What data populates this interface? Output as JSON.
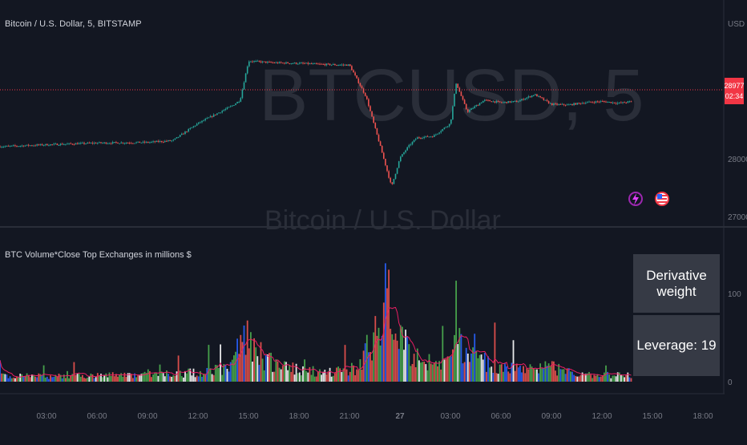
{
  "header": {
    "symbol_title": "Bitcoin / U.S. Dollar, 5, BITSTAMP",
    "watermark_main": "BTCUSD, 5",
    "watermark_sub": "Bitcoin / U.S. Dollar"
  },
  "price_pane": {
    "currency": "USD",
    "y_ticks": [
      "28000",
      "27000"
    ],
    "current_price": "28977",
    "countdown": "02:34",
    "colors": {
      "up": "#26a69a",
      "down": "#ef5350",
      "price_line": "#f23645"
    }
  },
  "indicator_pane": {
    "title": "BTC Volume*Close Top Exchanges in millions $",
    "y_ticks": [
      "100",
      "0"
    ],
    "info_box": {
      "weight_label": "Derivative weight",
      "leverage_label": "Leverage: 19"
    },
    "colors": {
      "green": "#4caf50",
      "red": "#ef5350",
      "blue": "#2962ff",
      "white": "#ffffff",
      "ma": "#e91e63"
    }
  },
  "time_axis": {
    "labels": [
      "03:00",
      "06:00",
      "09:00",
      "12:00",
      "15:00",
      "18:00",
      "21:00",
      "27",
      "03:00",
      "06:00",
      "09:00",
      "12:00",
      "15:00",
      "18:00"
    ]
  },
  "icons": [
    "lightning-icon",
    "us-flag-icon"
  ],
  "chart_data": [
    {
      "type": "line",
      "title": "Bitcoin / U.S. Dollar, 5, BITSTAMP",
      "ylabel": "USD",
      "x": [
        "26 00:30",
        "26 03:00",
        "26 06:00",
        "26 09:00",
        "26 10:30",
        "26 12:00",
        "26 14:00",
        "26 14:30",
        "26 15:00",
        "26 16:30",
        "26 18:00",
        "26 19:30",
        "26 21:00",
        "26 22:00",
        "26 22:50",
        "26 23:30",
        "27 00:00",
        "27 00:30",
        "27 01:00",
        "27 02:00",
        "27 03:00",
        "27 03:20",
        "27 04:00",
        "27 05:00",
        "27 06:00",
        "27 07:00",
        "27 08:00",
        "27 09:00",
        "27 10:00",
        "27 11:00",
        "27 12:00",
        "27 13:00",
        "27 13:45"
      ],
      "series": [
        {
          "values": [
            28200,
            28230,
            28260,
            28270,
            28300,
            28600,
            28900,
            29000,
            29680,
            29650,
            29640,
            29620,
            29610,
            29050,
            28200,
            27500,
            28000,
            28200,
            28350,
            28380,
            28600,
            29300,
            28800,
            29000,
            28960,
            28980,
            29100,
            28930,
            28920,
            28960,
            28980,
            28950,
            28977
          ]
        }
      ],
      "ylim": [
        26850,
        30300
      ]
    },
    {
      "type": "bar",
      "title": "BTC Volume*Close Top Exchanges in millions $",
      "x": [
        "26 00:30",
        "26 03:00",
        "26 06:00",
        "26 09:00",
        "26 12:00",
        "26 14:00",
        "26 15:00",
        "26 16:00",
        "26 18:00",
        "26 20:00",
        "26 21:30",
        "26 22:45",
        "26 23:10",
        "27 00:00",
        "27 01:00",
        "27 02:30",
        "27 03:10",
        "27 04:00",
        "27 06:00",
        "27 08:00",
        "27 09:00",
        "27 10:00",
        "27 11:00",
        "27 12:00",
        "27 13:45"
      ],
      "series": [
        {
          "values": [
            8,
            7,
            8,
            9,
            12,
            20,
            60,
            30,
            15,
            12,
            18,
            75,
            130,
            55,
            30,
            20,
            60,
            35,
            18,
            15,
            20,
            12,
            10,
            9,
            8
          ]
        }
      ],
      "ylim": [
        0,
        130
      ]
    }
  ]
}
